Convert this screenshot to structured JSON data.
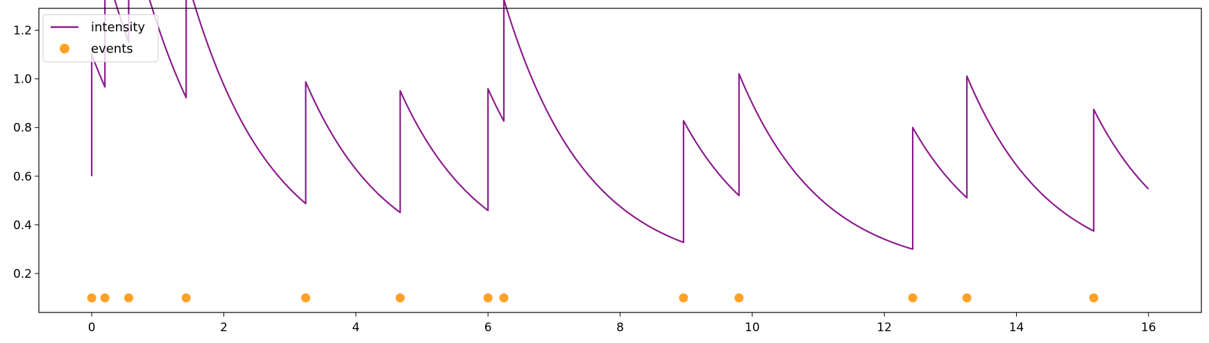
{
  "chart_data": {
    "type": "line",
    "title": "",
    "xlabel": "",
    "ylabel": "",
    "xlim": [
      -0.8,
      16.8
    ],
    "ylim": [
      0.04,
      1.29
    ],
    "xticks": [
      0,
      2,
      4,
      6,
      8,
      10,
      12,
      14,
      16
    ],
    "yticks": [
      0.2,
      0.4,
      0.6,
      0.8,
      1.0,
      1.2
    ],
    "xtick_labels": [
      "0",
      "2",
      "4",
      "6",
      "8",
      "10",
      "12",
      "14",
      "16"
    ],
    "ytick_labels": [
      "0.2",
      "0.4",
      "0.6",
      "0.8",
      "1.0",
      "1.2"
    ],
    "grid": false,
    "legend": {
      "location": "upper-left",
      "entries": [
        {
          "label": "intensity",
          "marker": "line"
        },
        {
          "label": "events",
          "marker": "dot"
        }
      ]
    },
    "intensity": {
      "name": "intensity",
      "color": "#8b1a8b",
      "mu": 0.2,
      "alpha": 0.5,
      "beta": 0.8,
      "x_start": 0,
      "x_end": 16,
      "initial_value": 0.6
    },
    "events": {
      "name": "events",
      "color": "#ffa126",
      "y": 0.1,
      "x": [
        0.0,
        0.2,
        0.56,
        1.43,
        3.24,
        4.67,
        6.0,
        6.24,
        8.96,
        9.8,
        12.43,
        13.25,
        15.17
      ]
    }
  }
}
